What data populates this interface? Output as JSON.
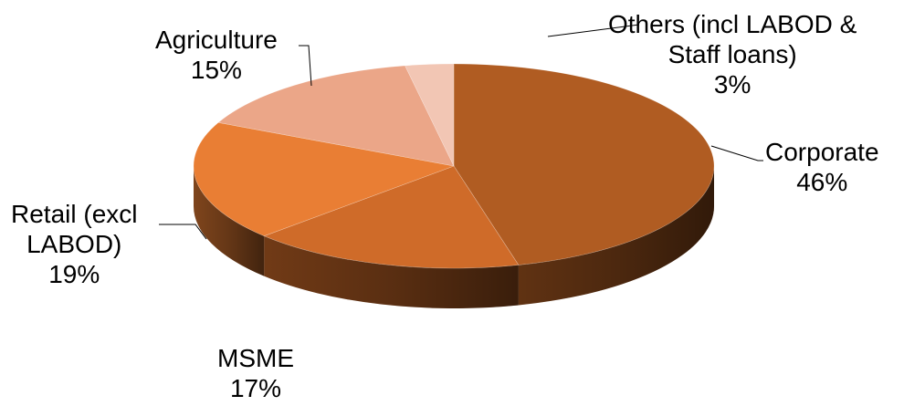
{
  "chart_data": {
    "type": "pie",
    "style": "3d",
    "title": "",
    "slices": [
      {
        "label": "Corporate",
        "percent_label": "46%",
        "value": 46,
        "color": "#b05c22"
      },
      {
        "label": "MSME",
        "percent_label": "17%",
        "value": 17,
        "color": "#cf6b29"
      },
      {
        "label": "Retail (excl LABOD)",
        "percent_label": "19%",
        "value": 19,
        "color": "#e97e34"
      },
      {
        "label": "Agriculture",
        "percent_label": "15%",
        "value": 15,
        "color": "#eba688"
      },
      {
        "label": "Others (incl LABOD & Staff loans)",
        "percent_label": "3%",
        "value": 3,
        "color": "#f2c6b4"
      }
    ],
    "label_lines": {
      "corporate": [
        "Corporate",
        "46%"
      ],
      "msme": [
        "MSME",
        "17%"
      ],
      "retail": [
        "Retail (excl",
        "LABOD)",
        "19%"
      ],
      "agriculture": [
        "Agriculture",
        "15%"
      ],
      "others": [
        "Others (incl LABOD &",
        "Staff loans)",
        "3%"
      ]
    },
    "legend": "none"
  }
}
